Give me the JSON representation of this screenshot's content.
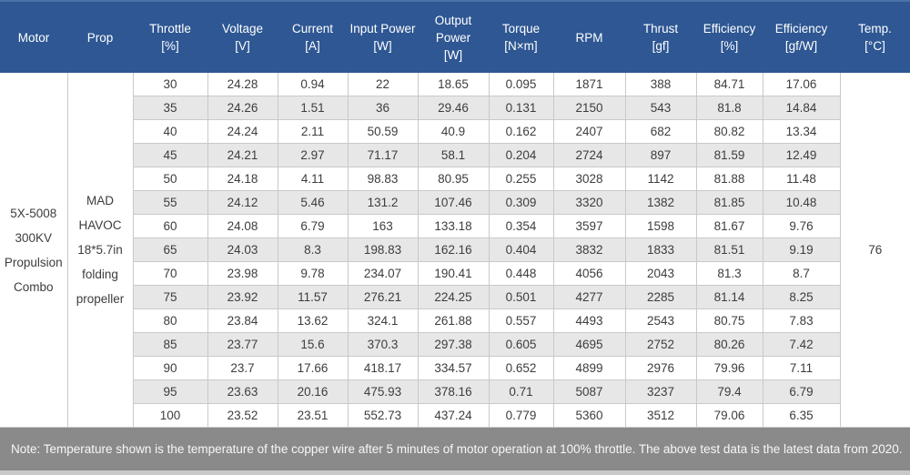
{
  "colors": {
    "header-bg": "#2e5793",
    "header-top": "#4a72a9",
    "header-text": "#ffffff",
    "stripe": "#e7e7e7",
    "grid": "#c9c9c9",
    "cell-text": "#3d3d3d",
    "note-bg": "#8a8a8a",
    "note-text": "#f7f7f7"
  },
  "table": {
    "headers": [
      {
        "title": "Motor",
        "unit": ""
      },
      {
        "title": "Prop",
        "unit": ""
      },
      {
        "title": "Throttle",
        "unit": "[%]"
      },
      {
        "title": "Voltage",
        "unit": "[V]"
      },
      {
        "title": "Current",
        "unit": "[A]"
      },
      {
        "title": "Input Power",
        "unit": "[W]"
      },
      {
        "title": "Output Power",
        "unit": "[W]"
      },
      {
        "title": "Torque",
        "unit": "[N×m]"
      },
      {
        "title": "RPM",
        "unit": ""
      },
      {
        "title": "Thrust",
        "unit": "[gf]"
      },
      {
        "title": "Efficiency",
        "unit": "[%]"
      },
      {
        "title": "Efficiency",
        "unit": "[gf/W]"
      },
      {
        "title": "Temp.",
        "unit": "[°C]"
      }
    ],
    "motor": "5X-5008 300KV Propulsion Combo",
    "prop": "MAD HAVOC 18*5.7in folding propeller",
    "temp": "76",
    "rows": [
      [
        "30",
        "24.28",
        "0.94",
        "22",
        "18.65",
        "0.095",
        "1871",
        "388",
        "84.71",
        "17.06"
      ],
      [
        "35",
        "24.26",
        "1.51",
        "36",
        "29.46",
        "0.131",
        "2150",
        "543",
        "81.8",
        "14.84"
      ],
      [
        "40",
        "24.24",
        "2.11",
        "50.59",
        "40.9",
        "0.162",
        "2407",
        "682",
        "80.82",
        "13.34"
      ],
      [
        "45",
        "24.21",
        "2.97",
        "71.17",
        "58.1",
        "0.204",
        "2724",
        "897",
        "81.59",
        "12.49"
      ],
      [
        "50",
        "24.18",
        "4.11",
        "98.83",
        "80.95",
        "0.255",
        "3028",
        "1142",
        "81.88",
        "11.48"
      ],
      [
        "55",
        "24.12",
        "5.46",
        "131.2",
        "107.46",
        "0.309",
        "3320",
        "1382",
        "81.85",
        "10.48"
      ],
      [
        "60",
        "24.08",
        "6.79",
        "163",
        "133.18",
        "0.354",
        "3597",
        "1598",
        "81.67",
        "9.76"
      ],
      [
        "65",
        "24.03",
        "8.3",
        "198.83",
        "162.16",
        "0.404",
        "3832",
        "1833",
        "81.51",
        "9.19"
      ],
      [
        "70",
        "23.98",
        "9.78",
        "234.07",
        "190.41",
        "0.448",
        "4056",
        "2043",
        "81.3",
        "8.7"
      ],
      [
        "75",
        "23.92",
        "11.57",
        "276.21",
        "224.25",
        "0.501",
        "4277",
        "2285",
        "81.14",
        "8.25"
      ],
      [
        "80",
        "23.84",
        "13.62",
        "324.1",
        "261.88",
        "0.557",
        "4493",
        "2543",
        "80.75",
        "7.83"
      ],
      [
        "85",
        "23.77",
        "15.6",
        "370.3",
        "297.38",
        "0.605",
        "4695",
        "2752",
        "80.26",
        "7.42"
      ],
      [
        "90",
        "23.7",
        "17.66",
        "418.17",
        "334.57",
        "0.652",
        "4899",
        "2976",
        "79.96",
        "7.11"
      ],
      [
        "95",
        "23.63",
        "20.16",
        "475.93",
        "378.16",
        "0.71",
        "5087",
        "3237",
        "79.4",
        "6.79"
      ],
      [
        "100",
        "23.52",
        "23.51",
        "552.73",
        "437.24",
        "0.779",
        "5360",
        "3512",
        "79.06",
        "6.35"
      ]
    ]
  },
  "note": "Note: Temperature shown is the temperature of the copper wire after 5 minutes of motor operation at 100% throttle. The above test data is the latest data from 2020."
}
